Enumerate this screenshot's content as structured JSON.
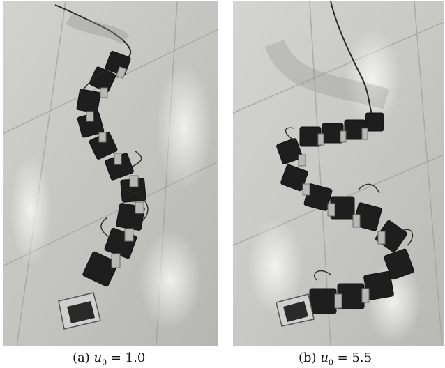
{
  "panels": [
    {
      "caption_prefix": "(a)",
      "variable": "u",
      "subscript": "0",
      "value_text": "= 1.0"
    },
    {
      "caption_prefix": "(b)",
      "variable": "u",
      "subscript": "0",
      "value_text": "= 5.5"
    }
  ],
  "colors": {
    "floor": "#c9c9c5",
    "floor_light": "#e4e4e0",
    "tile_seam": "#9c9c98",
    "robot_dark": "#1e1e1e",
    "robot_metal": "#b8b8b6",
    "cable": "#2a2a2a"
  }
}
